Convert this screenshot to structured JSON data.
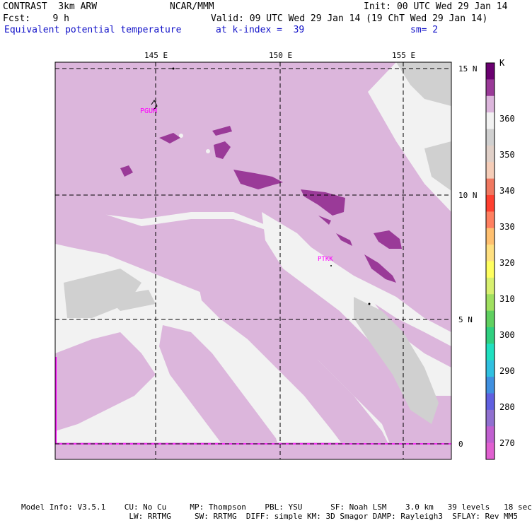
{
  "header": {
    "model": "CONTRAST  3km ARW",
    "center": "NCAR/MMM",
    "init": "Init: 00 UTC Wed 29 Jan 14",
    "fcst": "Fcst:    9 h",
    "valid": "Valid: 09 UTC Wed 29 Jan 14 (19 ChT Wed 29 Jan 14)",
    "field": "Equivalent potential temperature",
    "level": "at k-index =  39",
    "smooth": "sm= 2"
  },
  "map": {
    "lon_labels": [
      "145 E",
      "150 E",
      "155 E"
    ],
    "lat_labels": [
      "15 N",
      "10 N",
      "5 N",
      "0"
    ],
    "stations": [
      "PGUM",
      "PTKK"
    ]
  },
  "colorbar": {
    "unit": "K",
    "tick_labels": [
      "360",
      "350",
      "340",
      "330",
      "320",
      "310",
      "300",
      "290",
      "280",
      "270"
    ],
    "colors": [
      "#6a0070",
      "#9a3a98",
      "#dcb6dc",
      "#f2f2f2",
      "#d0d0d0",
      "#e0d0c8",
      "#f5cdb8",
      "#f07860",
      "#ff4030",
      "#ff8060",
      "#ffc070",
      "#ffe080",
      "#ffff60",
      "#d8f070",
      "#a0e060",
      "#60d060",
      "#30d080",
      "#20e0c0",
      "#30c0e0",
      "#4090e0",
      "#6060e0",
      "#9070d0",
      "#c060d0",
      "#e060d0"
    ]
  },
  "footer": {
    "line1": "Model Info: V3.5.1    CU: No Cu     MP: Thompson    PBL: YSU      SF: Noah LSM    3.0 km   39 levels   18 sec",
    "line2": "                       LW: RRTMG     SW: RRTMG  DIFF: simple KM: 3D Smagor DAMP: Rayleigh3  SFLAY: Rev MM5"
  },
  "palette": {
    "field_light_purple": "#dcb6dc",
    "field_dark_purple": "#9a3a98",
    "field_gray": "#d0d0d0",
    "field_white": "#f2f2f2",
    "station_magenta": "#ff00ff"
  }
}
